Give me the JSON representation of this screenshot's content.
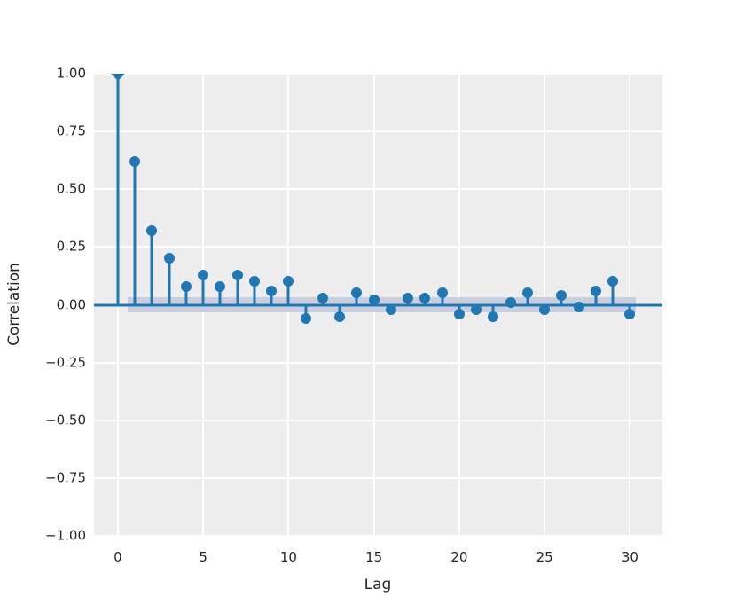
{
  "figure": {
    "background_color": "#ffffff",
    "panel_background_color": "#ededed",
    "grid_color": "#ffffff",
    "accent_color": "#1f77b4",
    "confidence_band_color": "#c8d0e0",
    "text_color": "#262626"
  },
  "chart_data": {
    "type": "scatter",
    "subtype": "autocorrelation-stem-plot",
    "title": "",
    "xlabel": "Lag",
    "ylabel": "Correlation",
    "x": [
      0,
      1,
      2,
      3,
      4,
      5,
      6,
      7,
      8,
      9,
      10,
      11,
      12,
      13,
      14,
      15,
      16,
      17,
      18,
      19,
      20,
      21,
      22,
      23,
      24,
      25,
      26,
      27,
      28,
      29,
      30
    ],
    "values": [
      1.0,
      0.62,
      0.32,
      0.2,
      0.08,
      0.13,
      0.08,
      0.13,
      0.1,
      0.06,
      0.1,
      -0.06,
      0.03,
      -0.05,
      0.05,
      0.02,
      -0.02,
      0.03,
      0.03,
      0.05,
      -0.04,
      -0.02,
      -0.05,
      0.01,
      0.05,
      -0.02,
      0.04,
      -0.01,
      0.06,
      0.1,
      -0.04
    ],
    "xlim": [
      -1.4,
      31.9
    ],
    "ylim": [
      -1.0,
      1.0
    ],
    "x_ticks": {
      "values": [
        0,
        5,
        10,
        15,
        20,
        25,
        30
      ],
      "labels": [
        "0",
        "5",
        "10",
        "15",
        "20",
        "25",
        "30"
      ]
    },
    "y_ticks": {
      "values": [
        1.0,
        0.75,
        0.5,
        0.25,
        0.0,
        -0.25,
        -0.5,
        -0.75,
        -1.0
      ],
      "labels": [
        "1.00",
        "0.75",
        "0.50",
        "0.25",
        "0.00",
        "−0.25",
        "−0.50",
        "−0.75",
        "−1.00"
      ]
    },
    "grid": "major gridlines on, white over gray panel",
    "legend_position": "none",
    "zero_line": 0.0,
    "confidence_band": {
      "x_start": 0.55,
      "x_end": 30.35,
      "upper": 0.031,
      "lower": -0.031
    },
    "lag0_marker_note": "lag 0 value 1.00 is clipped at top axis edge (down-pointing marker)"
  }
}
